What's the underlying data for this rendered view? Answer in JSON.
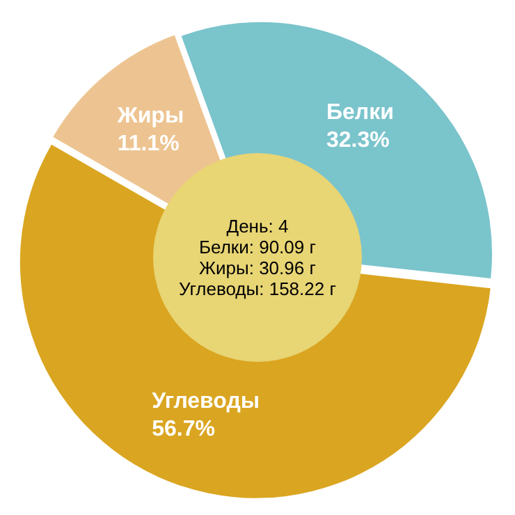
{
  "chart_data": {
    "type": "pie",
    "categories": [
      "Белки",
      "Углеводы",
      "Жиры"
    ],
    "values": [
      32.3,
      56.7,
      11.1
    ],
    "colors": [
      "#7ac4cc",
      "#daa520",
      "#edc491"
    ],
    "value_labels": [
      "32.3%",
      "56.7%",
      "11.1%"
    ],
    "annotations": [
      "День: 4",
      "Белки: 90.09 г",
      "Жиры: 30.96 г",
      "Углеводы: 158.22 г"
    ]
  }
}
